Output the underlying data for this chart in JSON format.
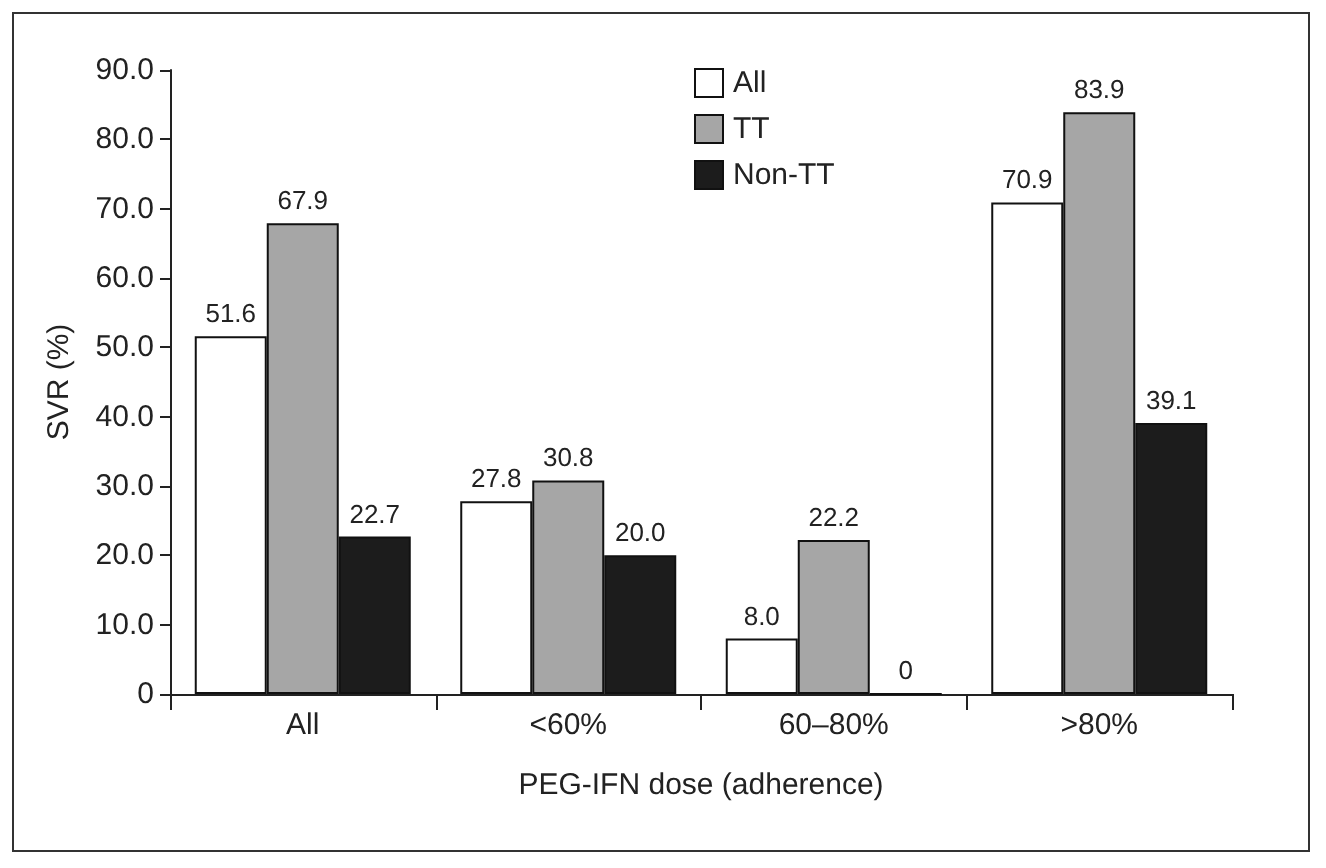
{
  "chart_data": {
    "type": "bar",
    "xlabel": "PEG-IFN dose (adherence)",
    "ylabel": "SVR (%)",
    "categories": [
      "All",
      "<60%",
      "60–80%",
      ">80%"
    ],
    "series": [
      {
        "name": "All",
        "color": "#ffffff",
        "values": [
          51.6,
          27.8,
          8.0,
          70.9
        ],
        "value_labels": [
          "51.6",
          "27.8",
          "8.0",
          "70.9"
        ]
      },
      {
        "name": "TT",
        "color": "#a6a6a6",
        "values": [
          67.9,
          30.8,
          22.2,
          83.9
        ],
        "value_labels": [
          "67.9",
          "30.8",
          "22.2",
          "83.9"
        ]
      },
      {
        "name": "Non-TT",
        "color": "#1c1c1c",
        "values": [
          22.7,
          20.0,
          0,
          39.1
        ],
        "value_labels": [
          "22.7",
          "20.0",
          "0",
          "39.1"
        ]
      }
    ],
    "ylim": [
      0,
      90
    ],
    "yticks": [
      {
        "value": 0,
        "label": "0"
      },
      {
        "value": 10,
        "label": "10.0"
      },
      {
        "value": 20,
        "label": "20.0"
      },
      {
        "value": 30,
        "label": "30.0"
      },
      {
        "value": 40,
        "label": "40.0"
      },
      {
        "value": 50,
        "label": "50.0"
      },
      {
        "value": 60,
        "label": "60.0"
      },
      {
        "value": 70,
        "label": "70.0"
      },
      {
        "value": 80,
        "label": "80.0"
      },
      {
        "value": 90,
        "label": "90.0"
      }
    ],
    "grid": false,
    "legend": "top"
  }
}
